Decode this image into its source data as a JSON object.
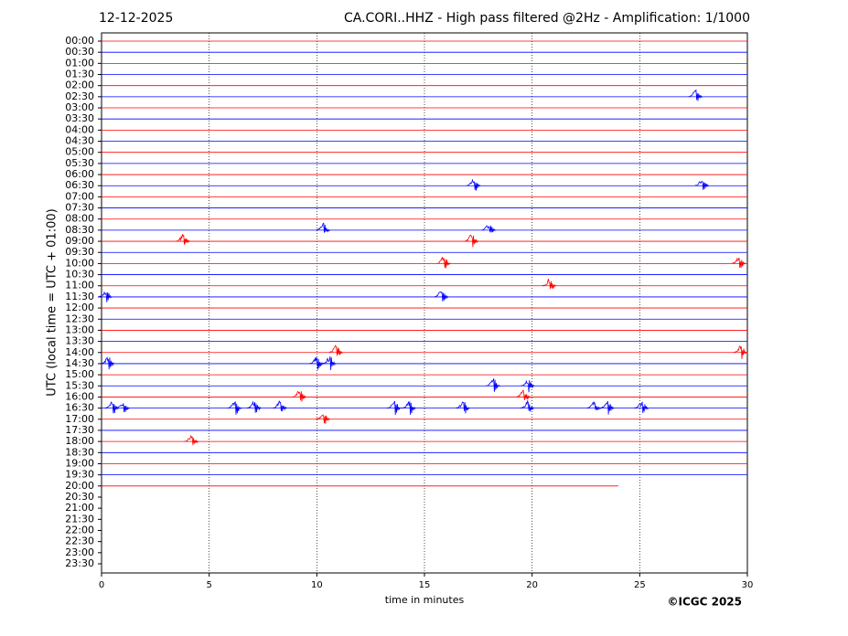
{
  "chart_data": {
    "type": "helicorder",
    "date": "12-12-2025",
    "title": "CA.CORI..HHZ - High pass filtered @2Hz - Amplification: 1/1000",
    "xlabel": "time in minutes",
    "ylabel": "UTC (local time = UTC + 01:00)",
    "credit": "©ICGC 2025",
    "xlim": [
      0,
      30
    ],
    "xticks": [
      0,
      5,
      10,
      15,
      20,
      25,
      30
    ],
    "grid": true,
    "colors": [
      "#ff0000",
      "#0000ff"
    ],
    "categories": [
      "00:00",
      "00:30",
      "01:00",
      "01:30",
      "02:00",
      "02:30",
      "03:00",
      "03:30",
      "04:00",
      "04:30",
      "05:00",
      "05:30",
      "06:00",
      "06:30",
      "07:00",
      "07:30",
      "08:00",
      "08:30",
      "09:00",
      "09:30",
      "10:00",
      "10:30",
      "11:00",
      "11:30",
      "12:00",
      "12:30",
      "13:00",
      "13:30",
      "14:00",
      "14:30",
      "15:00",
      "15:30",
      "16:00",
      "16:30",
      "17:00",
      "17:30",
      "18:00",
      "18:30",
      "19:00",
      "19:30",
      "20:00",
      "20:30",
      "21:00",
      "21:30",
      "22:00",
      "22:30",
      "23:00",
      "23:30"
    ],
    "trace_end": [
      30,
      30,
      30,
      30,
      30,
      30,
      30,
      30,
      30,
      30,
      30,
      30,
      30,
      30,
      30,
      30,
      30,
      30,
      30,
      30,
      30,
      30,
      30,
      30,
      30,
      30,
      30,
      30,
      30,
      30,
      30,
      30,
      30,
      30,
      30,
      30,
      30,
      30,
      30,
      30,
      24,
      null,
      null,
      null,
      null,
      null,
      null,
      null
    ],
    "events": [
      {
        "row": "02:30",
        "x": 27.6
      },
      {
        "row": "06:30",
        "x": 17.3
      },
      {
        "row": "06:30",
        "x": 27.9
      },
      {
        "row": "08:30",
        "x": 10.3
      },
      {
        "row": "08:30",
        "x": 18.0
      },
      {
        "row": "09:00",
        "x": 3.8
      },
      {
        "row": "09:00",
        "x": 17.2
      },
      {
        "row": "10:00",
        "x": 15.9
      },
      {
        "row": "10:00",
        "x": 29.6
      },
      {
        "row": "11:00",
        "x": 20.8
      },
      {
        "row": "11:30",
        "x": 0.2
      },
      {
        "row": "11:30",
        "x": 15.8
      },
      {
        "row": "14:00",
        "x": 10.9
      },
      {
        "row": "14:00",
        "x": 29.7
      },
      {
        "row": "14:30",
        "x": 0.3
      },
      {
        "row": "14:30",
        "x": 10.0
      },
      {
        "row": "14:30",
        "x": 10.6
      },
      {
        "row": "15:30",
        "x": 18.2
      },
      {
        "row": "15:30",
        "x": 19.8
      },
      {
        "row": "16:00",
        "x": 9.2
      },
      {
        "row": "16:00",
        "x": 19.6
      },
      {
        "row": "16:30",
        "x": 0.5
      },
      {
        "row": "16:30",
        "x": 1.0
      },
      {
        "row": "16:30",
        "x": 6.2
      },
      {
        "row": "16:30",
        "x": 7.1
      },
      {
        "row": "16:30",
        "x": 8.3
      },
      {
        "row": "16:30",
        "x": 13.6
      },
      {
        "row": "16:30",
        "x": 14.3
      },
      {
        "row": "16:30",
        "x": 16.8
      },
      {
        "row": "16:30",
        "x": 19.8
      },
      {
        "row": "16:30",
        "x": 22.9
      },
      {
        "row": "16:30",
        "x": 23.5
      },
      {
        "row": "16:30",
        "x": 25.1
      },
      {
        "row": "17:00",
        "x": 10.3
      },
      {
        "row": "18:00",
        "x": 4.2
      }
    ]
  }
}
